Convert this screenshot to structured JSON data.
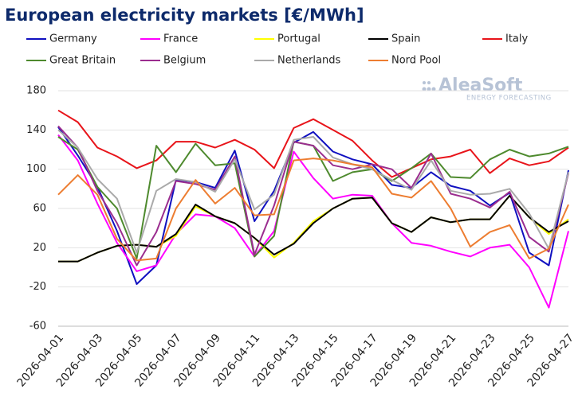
{
  "chart_data": {
    "type": "line",
    "title": "European electricity markets [€/MWh]",
    "logo": "AleaSoft",
    "logo_subtitle": "ENERGY FORECASTING",
    "categories": [
      "2026-04-01",
      null,
      "2026-04-03",
      null,
      "2026-04-05",
      null,
      "2026-04-07",
      null,
      "2026-04-09",
      null,
      "2026-04-11",
      null,
      "2026-04-13",
      null,
      "2026-04-15",
      null,
      "2026-04-17",
      null,
      "2026-04-19",
      null,
      "2026-04-21",
      null,
      "2026-04-23",
      null,
      "2026-04-25",
      null,
      "2026-04-27"
    ],
    "ylim": [
      -60,
      180
    ],
    "yticks": [
      -60,
      -20,
      20,
      60,
      100,
      140,
      180
    ],
    "grid": true,
    "series": [
      {
        "name": "Germany",
        "color": "#1010c0",
        "values": [
          143,
          114,
          82,
          37,
          -17,
          2,
          89,
          87,
          81,
          119,
          47,
          78,
          127,
          138,
          118,
          110,
          105,
          84,
          81,
          97,
          83,
          78,
          63,
          76,
          15,
          2,
          99
        ]
      },
      {
        "name": "France",
        "color": "#ff00ff",
        "values": [
          135,
          109,
          65,
          25,
          -4,
          2,
          34,
          54,
          52,
          40,
          11,
          37,
          118,
          91,
          70,
          74,
          73,
          45,
          25,
          22,
          16,
          11,
          20,
          23,
          0,
          -41,
          37
        ]
      },
      {
        "name": "Portugal",
        "color": "#ffff00",
        "values": [
          6,
          6,
          15,
          22,
          23,
          21,
          32,
          62,
          52,
          45,
          30,
          10,
          25,
          47,
          60,
          70,
          71,
          45,
          36,
          51,
          46,
          49,
          49,
          73,
          51,
          34,
          49
        ]
      },
      {
        "name": "Spain",
        "color": "#000000",
        "values": [
          6,
          6,
          15,
          22,
          23,
          21,
          34,
          64,
          52,
          45,
          30,
          13,
          24,
          45,
          60,
          70,
          71,
          45,
          36,
          51,
          46,
          49,
          49,
          73,
          51,
          36,
          47
        ]
      },
      {
        "name": "Italy",
        "color": "#e8141a",
        "values": [
          160,
          148,
          122,
          113,
          101,
          109,
          128,
          128,
          122,
          130,
          120,
          101,
          142,
          151,
          140,
          129,
          109,
          92,
          101,
          110,
          113,
          120,
          96,
          111,
          104,
          108,
          122
        ]
      },
      {
        "name": "Great Britain",
        "color": "#4e8a2e",
        "values": [
          133,
          120,
          82,
          60,
          9,
          124,
          97,
          126,
          104,
          106,
          11,
          32,
          128,
          124,
          88,
          97,
          100,
          88,
          101,
          116,
          92,
          91,
          110,
          120,
          113,
          116,
          123
        ]
      },
      {
        "name": "Belgium",
        "color": "#9b2d8f",
        "values": [
          144,
          122,
          78,
          45,
          2,
          36,
          88,
          85,
          79,
          113,
          13,
          63,
          128,
          124,
          104,
          100,
          105,
          100,
          81,
          116,
          75,
          70,
          61,
          77,
          31,
          16,
          96
        ]
      },
      {
        "name": "Netherlands",
        "color": "#aaaaaa",
        "values": [
          140,
          122,
          90,
          70,
          15,
          78,
          90,
          87,
          77,
          110,
          59,
          74,
          130,
          133,
          112,
          105,
          100,
          89,
          79,
          109,
          78,
          74,
          75,
          80,
          55,
          19,
          97
        ]
      },
      {
        "name": "Nord Pool",
        "color": "#ed7d31",
        "values": [
          74,
          94,
          74,
          29,
          7,
          9,
          60,
          89,
          65,
          81,
          53,
          54,
          109,
          111,
          109,
          105,
          102,
          75,
          71,
          88,
          60,
          21,
          36,
          43,
          9,
          19,
          64
        ]
      }
    ]
  }
}
